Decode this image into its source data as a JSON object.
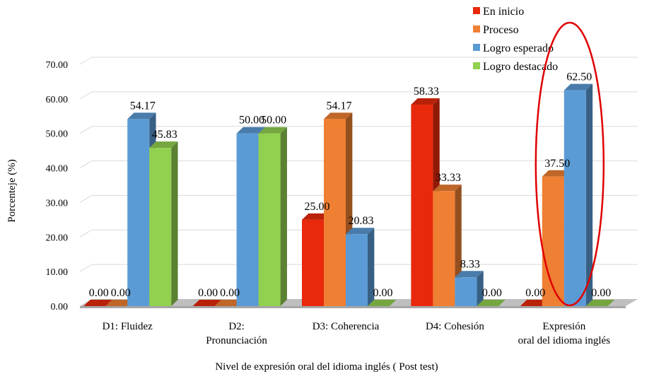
{
  "chart_data": {
    "type": "bar",
    "title": "",
    "xlabel": "Nivel de expresión oral del idioma inglés ( Post test)",
    "ylabel": "Porcenteje (%)",
    "ylim": [
      0,
      70
    ],
    "yticks": [
      "0.00",
      "10.00",
      "20.00",
      "30.00",
      "40.00",
      "50.00",
      "60.00",
      "70.00"
    ],
    "categories": [
      [
        "D1: Fluidez"
      ],
      [
        "D2:",
        "Pronunciación"
      ],
      [
        "D3: Coherencia"
      ],
      [
        "D4: Cohesión"
      ],
      [
        "Expresión",
        "oral del idioma inglés"
      ]
    ],
    "series": [
      {
        "name": "En inicio",
        "color": "#e8290b",
        "values": [
          0.0,
          0.0,
          25.0,
          58.33,
          0.0
        ],
        "labels": [
          "0.00",
          "0.00",
          "25.00",
          "58.33",
          "0.00"
        ]
      },
      {
        "name": "Proceso",
        "color": "#ef7f32",
        "values": [
          0.0,
          0.0,
          54.17,
          33.33,
          37.5
        ],
        "labels": [
          "0.00",
          "0.00",
          "54.17",
          "33.33",
          "37.50"
        ]
      },
      {
        "name": "Logro esperado",
        "color": "#5b9bd5",
        "values": [
          54.17,
          50.0,
          20.83,
          8.33,
          62.5
        ],
        "labels": [
          "54.17",
          "50.00",
          "20.83",
          "8.33",
          "62.50"
        ]
      },
      {
        "name": "Logro destacado",
        "color": "#92d050",
        "values": [
          45.83,
          50.0,
          0.0,
          0.0,
          0.0
        ],
        "labels": [
          "45.83",
          "50.00",
          "0.00",
          "0.00",
          "0.00"
        ]
      }
    ],
    "grid": true,
    "legend_position": "top-right",
    "highlight": {
      "category_index": 4,
      "color": "#e00000"
    }
  }
}
